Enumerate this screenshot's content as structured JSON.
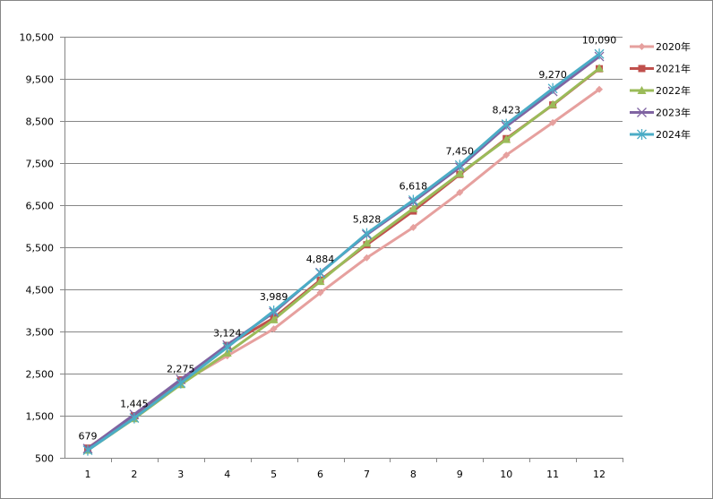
{
  "chart_data": {
    "type": "line",
    "title": "",
    "xlabel": "",
    "ylabel": "",
    "categories": [
      "1",
      "2",
      "3",
      "4",
      "5",
      "6",
      "7",
      "8",
      "9",
      "10",
      "11",
      "12"
    ],
    "ylim": [
      500,
      10500
    ],
    "yticks": [
      "500",
      "1,500",
      "2,500",
      "3,500",
      "4,500",
      "5,500",
      "6,500",
      "7,500",
      "8,500",
      "9,500",
      "10,500"
    ],
    "grid": true,
    "legend": "right",
    "series": [
      {
        "name": "2020年",
        "color": "#e6a09e",
        "marker": "diamond",
        "values": [
          730,
          1480,
          2280,
          2920,
          3560,
          4420,
          5250,
          5970,
          6800,
          7690,
          8460,
          9250
        ]
      },
      {
        "name": "2021年",
        "color": "#c0504d",
        "marker": "square",
        "values": [
          730,
          1500,
          2350,
          3170,
          3820,
          4720,
          5560,
          6360,
          7230,
          8080,
          8880,
          9740
        ]
      },
      {
        "name": "2022年",
        "color": "#9bbb59",
        "marker": "triangle",
        "values": [
          680,
          1430,
          2240,
          2990,
          3780,
          4690,
          5600,
          6420,
          7250,
          8060,
          8890,
          9750
        ]
      },
      {
        "name": "2023年",
        "color": "#8064a2",
        "marker": "x",
        "values": [
          720,
          1530,
          2360,
          3180,
          3950,
          4900,
          5800,
          6580,
          7400,
          8370,
          9200,
          10030
        ]
      },
      {
        "name": "2024年",
        "color": "#4bacc6",
        "marker": "star",
        "values": [
          679,
          1445,
          2275,
          3124,
          3989,
          4884,
          5828,
          6618,
          7450,
          8423,
          9270,
          10090
        ]
      }
    ],
    "data_labels": {
      "series": "2024年",
      "labels": [
        "679",
        "1,445",
        "2,275",
        "3,124",
        "3,989",
        "4,884",
        "5,828",
        "6,618",
        "7,450",
        "8,423",
        "9,270",
        "10,090"
      ]
    }
  }
}
